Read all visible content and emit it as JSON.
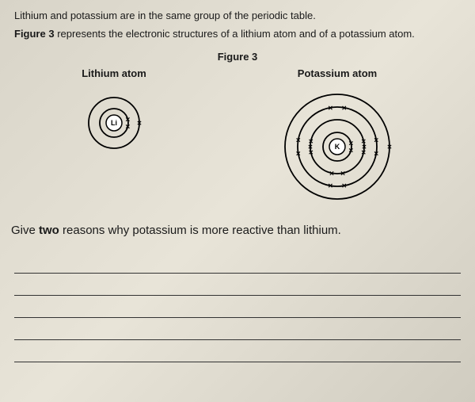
{
  "intro_line1": "Lithium and potassium are in the same group of the periodic table.",
  "intro_line2_prefix": "Figure 3",
  "intro_line2_rest": " represents the electronic structures of a lithium atom and of a potassium atom.",
  "figure_title": "Figure 3",
  "lithium_label": "Lithium atom",
  "potassium_label": "Potassium atom",
  "question_prefix": "Give ",
  "question_bold": "two",
  "question_rest": " reasons why potassium is more reactive than lithium.",
  "lithium": {
    "nucleus_label": "Li",
    "shells": [
      18,
      32
    ],
    "electrons": [
      {
        "shell": 0,
        "angle": 75,
        "symbol": "✕"
      },
      {
        "shell": 0,
        "angle": 105,
        "symbol": "✕"
      },
      {
        "shell": 1,
        "angle": 90,
        "symbol": "✕"
      }
    ],
    "colors": {
      "stroke": "#000000",
      "fill": "#ffffff",
      "text": "#000000"
    }
  },
  "potassium": {
    "nucleus_label": "K",
    "shells": [
      18,
      34,
      50,
      66
    ],
    "electrons": [
      {
        "shell": 0,
        "angle": 75,
        "symbol": "✕"
      },
      {
        "shell": 0,
        "angle": 105,
        "symbol": "✕"
      },
      {
        "shell": 1,
        "angle": 78,
        "symbol": "✕"
      },
      {
        "shell": 1,
        "angle": 90,
        "symbol": "✕"
      },
      {
        "shell": 1,
        "angle": 102,
        "symbol": "✕"
      },
      {
        "shell": 1,
        "angle": 168,
        "symbol": "✕"
      },
      {
        "shell": 1,
        "angle": 192,
        "symbol": "✕"
      },
      {
        "shell": 1,
        "angle": 258,
        "symbol": "✕"
      },
      {
        "shell": 1,
        "angle": 270,
        "symbol": "✕"
      },
      {
        "shell": 1,
        "angle": 282,
        "symbol": "✕"
      },
      {
        "shell": 2,
        "angle": 80,
        "symbol": "✕"
      },
      {
        "shell": 2,
        "angle": 100,
        "symbol": "✕"
      },
      {
        "shell": 2,
        "angle": 170,
        "symbol": "✕"
      },
      {
        "shell": 2,
        "angle": 190,
        "symbol": "✕"
      },
      {
        "shell": 2,
        "angle": 260,
        "symbol": "✕"
      },
      {
        "shell": 2,
        "angle": 280,
        "symbol": "✕"
      },
      {
        "shell": 2,
        "angle": 350,
        "symbol": "✕"
      },
      {
        "shell": 2,
        "angle": 10,
        "symbol": "✕"
      },
      {
        "shell": 3,
        "angle": 90,
        "symbol": "✕"
      }
    ],
    "colors": {
      "stroke": "#000000",
      "fill": "#ffffff",
      "text": "#000000"
    }
  },
  "answer_line_count": 5
}
